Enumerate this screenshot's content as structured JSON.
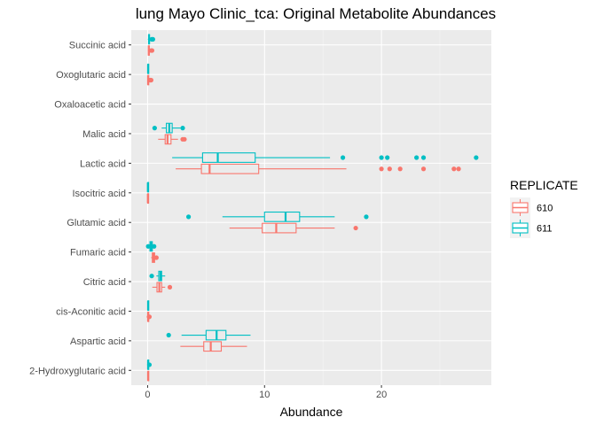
{
  "chart_data": {
    "type": "boxplot-horizontal",
    "title": "lung Mayo Clinic_tca: Original Metabolite Abundances",
    "xlabel": "Abundance",
    "ylabel": "",
    "xlim": [
      -1.4,
      29.4
    ],
    "x_ticks": [
      0,
      10,
      20
    ],
    "grid": true,
    "legend": {
      "title": "REPLICATE",
      "position": "right",
      "entries": [
        {
          "label": "610",
          "color": "#F8766D"
        },
        {
          "label": "611",
          "color": "#00BFC4"
        }
      ]
    },
    "categories": [
      "Succinic acid",
      "Oxoglutaric acid",
      "Oxaloacetic acid",
      "Malic acid",
      "Lactic acid",
      "Isocitric acid",
      "Glutamic acid",
      "Fumaric acid",
      "Citric acid",
      "cis-Aconitic acid",
      "Aspartic acid",
      "2-Hydroxyglutaric acid"
    ],
    "series": [
      {
        "name": "610",
        "color": "#F8766D",
        "boxes": [
          {
            "category": "Succinic acid",
            "min": 0.02,
            "q1": 0.06,
            "median": 0.1,
            "q3": 0.14,
            "max": 0.2,
            "outliers": [
              0.3,
              0.38
            ]
          },
          {
            "category": "Oxoglutaric acid",
            "min": 0.0,
            "q1": 0.02,
            "median": 0.04,
            "q3": 0.06,
            "max": 0.1,
            "outliers": [
              0.2,
              0.25,
              0.3
            ]
          },
          {
            "category": "Malic acid",
            "min": 0.9,
            "q1": 1.5,
            "median": 1.7,
            "q3": 2.0,
            "max": 2.6,
            "outliers": [
              3.0,
              3.15
            ]
          },
          {
            "category": "Lactic acid",
            "min": 2.4,
            "q1": 4.6,
            "median": 5.3,
            "q3": 9.5,
            "max": 17.0,
            "outliers": [
              20.0,
              20.7,
              21.6,
              23.6,
              26.2,
              26.6
            ]
          },
          {
            "category": "Isocitric acid",
            "min": 0.0,
            "q1": 0.01,
            "median": 0.02,
            "q3": 0.03,
            "max": 0.05,
            "outliers": []
          },
          {
            "category": "Glutamic acid",
            "min": 7.0,
            "q1": 9.8,
            "median": 11.0,
            "q3": 12.7,
            "max": 16.0,
            "outliers": [
              17.8
            ]
          },
          {
            "category": "Fumaric acid",
            "min": 0.3,
            "q1": 0.4,
            "median": 0.5,
            "q3": 0.6,
            "max": 0.7,
            "outliers": [
              0.75
            ]
          },
          {
            "category": "Citric acid",
            "min": 0.4,
            "q1": 0.8,
            "median": 1.0,
            "q3": 1.2,
            "max": 1.5,
            "outliers": [
              1.9
            ]
          },
          {
            "category": "cis-Aconitic acid",
            "min": 0.0,
            "q1": 0.02,
            "median": 0.04,
            "q3": 0.06,
            "max": 0.1,
            "outliers": [
              0.12,
              0.15
            ]
          },
          {
            "category": "Aspartic acid",
            "min": 2.8,
            "q1": 4.8,
            "median": 5.4,
            "q3": 6.3,
            "max": 8.5,
            "outliers": []
          },
          {
            "category": "2-Hydroxyglutaric acid",
            "min": 0.0,
            "q1": 0.02,
            "median": 0.04,
            "q3": 0.06,
            "max": 0.1,
            "outliers": []
          }
        ]
      },
      {
        "name": "611",
        "color": "#00BFC4",
        "boxes": [
          {
            "category": "Succinic acid",
            "min": 0.02,
            "q1": 0.08,
            "median": 0.12,
            "q3": 0.16,
            "max": 0.25,
            "outliers": [
              0.35,
              0.45
            ]
          },
          {
            "category": "Oxoglutaric acid",
            "min": 0.0,
            "q1": 0.02,
            "median": 0.04,
            "q3": 0.06,
            "max": 0.1,
            "outliers": []
          },
          {
            "category": "Malic acid",
            "min": 1.2,
            "q1": 1.6,
            "median": 1.85,
            "q3": 2.1,
            "max": 2.8,
            "outliers": [
              0.6,
              3.0
            ]
          },
          {
            "category": "Lactic acid",
            "min": 2.1,
            "q1": 4.7,
            "median": 6.0,
            "q3": 9.2,
            "max": 15.6,
            "outliers": [
              16.7,
              20.0,
              20.5,
              23.0,
              23.6,
              28.1
            ]
          },
          {
            "category": "Isocitric acid",
            "min": 0.0,
            "q1": 0.01,
            "median": 0.02,
            "q3": 0.03,
            "max": 0.05,
            "outliers": []
          },
          {
            "category": "Glutamic acid",
            "min": 6.4,
            "q1": 10.0,
            "median": 11.8,
            "q3": 13.0,
            "max": 16.0,
            "outliers": [
              3.5,
              18.7
            ]
          },
          {
            "category": "Fumaric acid",
            "min": 0.1,
            "q1": 0.2,
            "median": 0.3,
            "q3": 0.4,
            "max": 0.5,
            "outliers": [
              0.05,
              0.55
            ]
          },
          {
            "category": "Citric acid",
            "min": 0.75,
            "q1": 0.95,
            "median": 1.1,
            "q3": 1.2,
            "max": 1.5,
            "outliers": [
              0.35
            ]
          },
          {
            "category": "cis-Aconitic acid",
            "min": 0.0,
            "q1": 0.02,
            "median": 0.04,
            "q3": 0.06,
            "max": 0.1,
            "outliers": []
          },
          {
            "category": "Aspartic acid",
            "min": 2.9,
            "q1": 5.0,
            "median": 5.9,
            "q3": 6.7,
            "max": 8.8,
            "outliers": [
              1.8
            ]
          },
          {
            "category": "2-Hydroxyglutaric acid",
            "min": 0.0,
            "q1": 0.02,
            "median": 0.04,
            "q3": 0.06,
            "max": 0.1,
            "outliers": [
              0.15
            ]
          }
        ]
      }
    ]
  }
}
